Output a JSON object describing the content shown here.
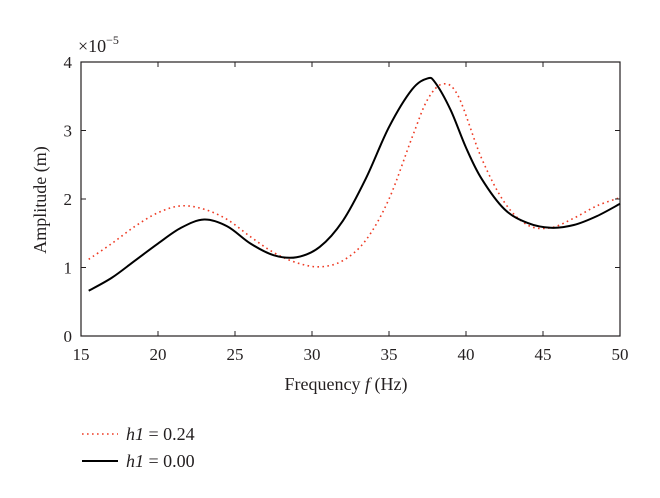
{
  "chart_data": {
    "type": "line",
    "xlabel": "Frequency",
    "xlabel_var": "f",
    "xlabel_unit": "(Hz)",
    "ylabel": "Amplitude (m)",
    "y_exponent_base": "×10",
    "y_exponent_power": "−5",
    "xlim": [
      15,
      50
    ],
    "ylim": [
      0,
      4
    ],
    "xticks": [
      "15",
      "20",
      "25",
      "30",
      "35",
      "40",
      "45",
      "50"
    ],
    "yticks": [
      "0",
      "1",
      "2",
      "3",
      "4"
    ],
    "grid": false,
    "legend_position": "bottom-left",
    "series": [
      {
        "name_var": "h1",
        "name_value": " = 0.24",
        "style": "dotted",
        "color": "#ee3b24",
        "x": [
          15.5,
          17,
          18.5,
          20,
          21.5,
          23,
          24.5,
          26,
          27.5,
          29,
          30.5,
          32,
          33.5,
          35,
          36.5,
          37.5,
          38.5,
          39.5,
          41,
          42.5,
          44,
          45.5,
          47,
          48.5,
          50
        ],
        "y": [
          1.12,
          1.35,
          1.6,
          1.8,
          1.9,
          1.85,
          1.7,
          1.45,
          1.22,
          1.07,
          1.01,
          1.1,
          1.4,
          2.0,
          2.9,
          3.45,
          3.68,
          3.5,
          2.6,
          1.95,
          1.62,
          1.58,
          1.72,
          1.9,
          2.02
        ]
      },
      {
        "name_var": "h1",
        "name_value": " = 0.00",
        "style": "solid",
        "color": "#000000",
        "x": [
          15.5,
          17,
          18.5,
          20,
          21.5,
          23,
          24.5,
          26,
          27.5,
          29,
          30.5,
          32,
          33.5,
          35,
          36.5,
          37.5,
          38,
          39,
          40,
          41,
          42.5,
          44,
          45.5,
          47,
          48.5,
          50
        ],
        "y": [
          0.66,
          0.85,
          1.1,
          1.35,
          1.58,
          1.7,
          1.6,
          1.35,
          1.18,
          1.15,
          1.3,
          1.68,
          2.3,
          3.05,
          3.6,
          3.76,
          3.7,
          3.3,
          2.75,
          2.3,
          1.85,
          1.65,
          1.58,
          1.62,
          1.75,
          1.93
        ]
      }
    ]
  }
}
